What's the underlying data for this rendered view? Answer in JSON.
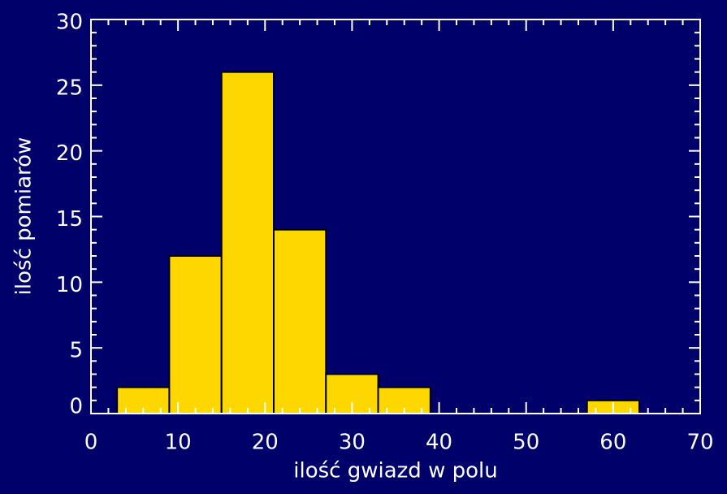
{
  "chart_data": {
    "type": "histogram",
    "x_label": "ilość gwiazd w polu",
    "y_label": "ilość pomiarów",
    "bins": [
      3,
      9,
      15,
      21,
      27,
      33,
      39,
      45,
      51,
      57,
      63
    ],
    "values": [
      2,
      12,
      26,
      14,
      3,
      2,
      0,
      0,
      0,
      1
    ],
    "color": "#ffd700",
    "xlim": [
      0,
      70
    ],
    "xticks": [
      0,
      10,
      20,
      30,
      40,
      50,
      60,
      70
    ],
    "ylim": [
      0,
      30
    ],
    "yticks": [
      0,
      5,
      10,
      15,
      20,
      25,
      30
    ]
  }
}
